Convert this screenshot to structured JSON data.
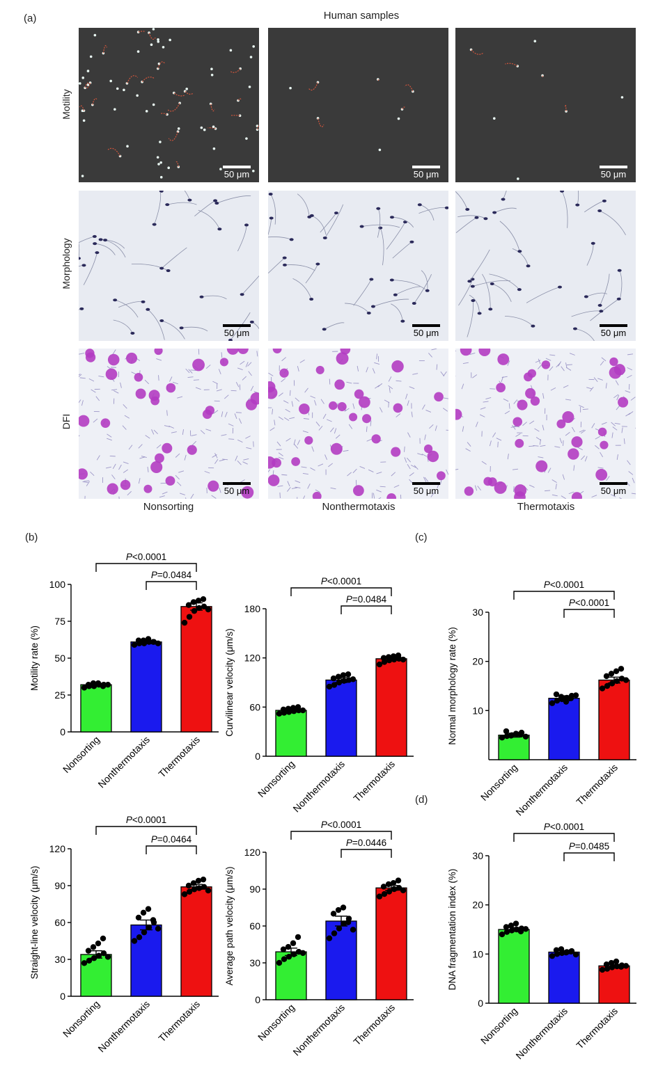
{
  "panel_a": {
    "letter": "(a)",
    "header": "Human samples",
    "row_labels": [
      "Motility",
      "Morphology",
      "DFI"
    ],
    "column_labels": [
      "Nonsorting",
      "Nonthermotaxis",
      "Thermotaxis"
    ],
    "scale_bar": "50 μm"
  },
  "panel_letters": {
    "b": "(b)",
    "c": "(c)",
    "d": "(d)"
  },
  "colors": {
    "nonsorting": "#33ee33",
    "nonthermotaxis": "#1a1aee",
    "thermotaxis": "#ee1111",
    "motility_bg": "#3a3a3a",
    "morph_bg": "#e8ebf2",
    "dfi_bg": "#eef0f6",
    "dfi_stain": "#b23cc2"
  },
  "chart_data": [
    {
      "type": "bar",
      "title": "",
      "xlabel": "",
      "ylabel": "Motility rate (%)",
      "categories": [
        "Nonsorting",
        "Nonthermotaxis",
        "Thermotaxis"
      ],
      "values": [
        32,
        61,
        85
      ],
      "errors": [
        1,
        1,
        2.5
      ],
      "ylim": [
        0,
        100
      ],
      "yticks": [
        0,
        25,
        50,
        75,
        100
      ],
      "points": [
        [
          30,
          31,
          31,
          32,
          32,
          32,
          33,
          33,
          31,
          32
        ],
        [
          59,
          60,
          60,
          61,
          61,
          62,
          62,
          63,
          61,
          60
        ],
        [
          74,
          78,
          82,
          84,
          85,
          86,
          88,
          89,
          90,
          83
        ]
      ],
      "annotations": [
        {
          "text": "P<0.0001",
          "from": 0,
          "to": 2
        },
        {
          "text": "P=0.0484",
          "from": 1,
          "to": 2
        }
      ]
    },
    {
      "type": "bar",
      "title": "",
      "xlabel": "",
      "ylabel": "Curvilinear velocity (μm/s)",
      "categories": [
        "Nonsorting",
        "Nonthermotaxis",
        "Thermotaxis"
      ],
      "values": [
        56,
        93,
        119
      ],
      "errors": [
        2,
        3,
        1.5
      ],
      "ylim": [
        0,
        180
      ],
      "yticks": [
        0,
        60,
        120,
        180
      ],
      "points": [
        [
          52,
          53,
          54,
          55,
          56,
          57,
          58,
          59,
          60,
          56
        ],
        [
          85,
          87,
          90,
          92,
          93,
          95,
          97,
          99,
          100,
          94
        ],
        [
          112,
          115,
          117,
          118,
          119,
          120,
          121,
          122,
          123,
          118
        ]
      ],
      "annotations": [
        {
          "text": "P<0.0001",
          "from": 0,
          "to": 2
        },
        {
          "text": "P=0.0484",
          "from": 1,
          "to": 2
        }
      ]
    },
    {
      "type": "bar",
      "title": "",
      "xlabel": "",
      "ylabel": "Normal morphology rate (%)",
      "categories": [
        "Nonsorting",
        "Nonthermotaxis",
        "Thermotaxis"
      ],
      "values": [
        5,
        12.5,
        16.2
      ],
      "errors": [
        0.4,
        0.5,
        0.6
      ],
      "ylim": [
        0,
        30
      ],
      "yticks": [
        10,
        20,
        30
      ],
      "points": [
        [
          4.5,
          4.8,
          5.0,
          5.2,
          5.5,
          5.8,
          4.9,
          5.3,
          5.1,
          4.7
        ],
        [
          11.5,
          12.0,
          12.3,
          12.6,
          13.0,
          13.3,
          12.8,
          11.8,
          12.5,
          13.1
        ],
        [
          14.5,
          15.0,
          15.5,
          16.0,
          16.5,
          17.0,
          17.5,
          18.0,
          18.5,
          16.2
        ]
      ],
      "annotations": [
        {
          "text": "P<0.0001",
          "from": 0,
          "to": 2
        },
        {
          "text": "P<0.0001",
          "from": 1,
          "to": 2
        }
      ]
    },
    {
      "type": "bar",
      "title": "",
      "xlabel": "",
      "ylabel": "Straight-line velocity (μm/s)",
      "categories": [
        "Nonsorting",
        "Nonthermotaxis",
        "Thermotaxis"
      ],
      "values": [
        34,
        58,
        89
      ],
      "errors": [
        3,
        4,
        2
      ],
      "ylim": [
        0,
        120
      ],
      "yticks": [
        0,
        30,
        60,
        90,
        120
      ],
      "points": [
        [
          27,
          29,
          31,
          33,
          35,
          37,
          40,
          43,
          47,
          32
        ],
        [
          45,
          48,
          52,
          56,
          60,
          64,
          68,
          71,
          62,
          55
        ],
        [
          83,
          85,
          87,
          88,
          89,
          90,
          92,
          94,
          95,
          86
        ]
      ],
      "annotations": [
        {
          "text": "P<0.0001",
          "from": 0,
          "to": 2
        },
        {
          "text": "P=0.0464",
          "from": 1,
          "to": 2
        }
      ]
    },
    {
      "type": "bar",
      "title": "",
      "xlabel": "",
      "ylabel": "Average path velocity (μm/s)",
      "categories": [
        "Nonsorting",
        "Nonthermotaxis",
        "Thermotaxis"
      ],
      "values": [
        39,
        64,
        91
      ],
      "errors": [
        3,
        4,
        2
      ],
      "ylim": [
        0,
        120
      ],
      "yticks": [
        0,
        30,
        60,
        90,
        120
      ],
      "points": [
        [
          30,
          33,
          35,
          37,
          39,
          41,
          43,
          46,
          51,
          38
        ],
        [
          50,
          54,
          58,
          62,
          66,
          70,
          73,
          75,
          63,
          57
        ],
        [
          84,
          86,
          88,
          90,
          91,
          92,
          94,
          95,
          97,
          89
        ]
      ],
      "annotations": [
        {
          "text": "P<0.0001",
          "from": 0,
          "to": 2
        },
        {
          "text": "P=0.0446",
          "from": 1,
          "to": 2
        }
      ]
    },
    {
      "type": "bar",
      "title": "",
      "xlabel": "",
      "ylabel": "DNA fragmentation index (%)",
      "categories": [
        "Nonsorting",
        "Nonthermotaxis",
        "Thermotaxis"
      ],
      "values": [
        15,
        10.4,
        7.6
      ],
      "errors": [
        0.4,
        0.3,
        0.3
      ],
      "ylim": [
        0,
        30
      ],
      "yticks": [
        0,
        10,
        20,
        30
      ],
      "points": [
        [
          14.0,
          14.5,
          14.8,
          15.0,
          15.2,
          15.5,
          15.8,
          16.2,
          14.6,
          15.1
        ],
        [
          9.6,
          10.0,
          10.2,
          10.4,
          10.6,
          10.8,
          11.0,
          10.3,
          10.5,
          9.9
        ],
        [
          6.8,
          7.0,
          7.3,
          7.5,
          7.7,
          7.9,
          8.2,
          8.5,
          7.4,
          7.6
        ]
      ],
      "annotations": [
        {
          "text": "P<0.0001",
          "from": 0,
          "to": 2
        },
        {
          "text": "P=0.0485",
          "from": 1,
          "to": 2
        }
      ]
    }
  ]
}
